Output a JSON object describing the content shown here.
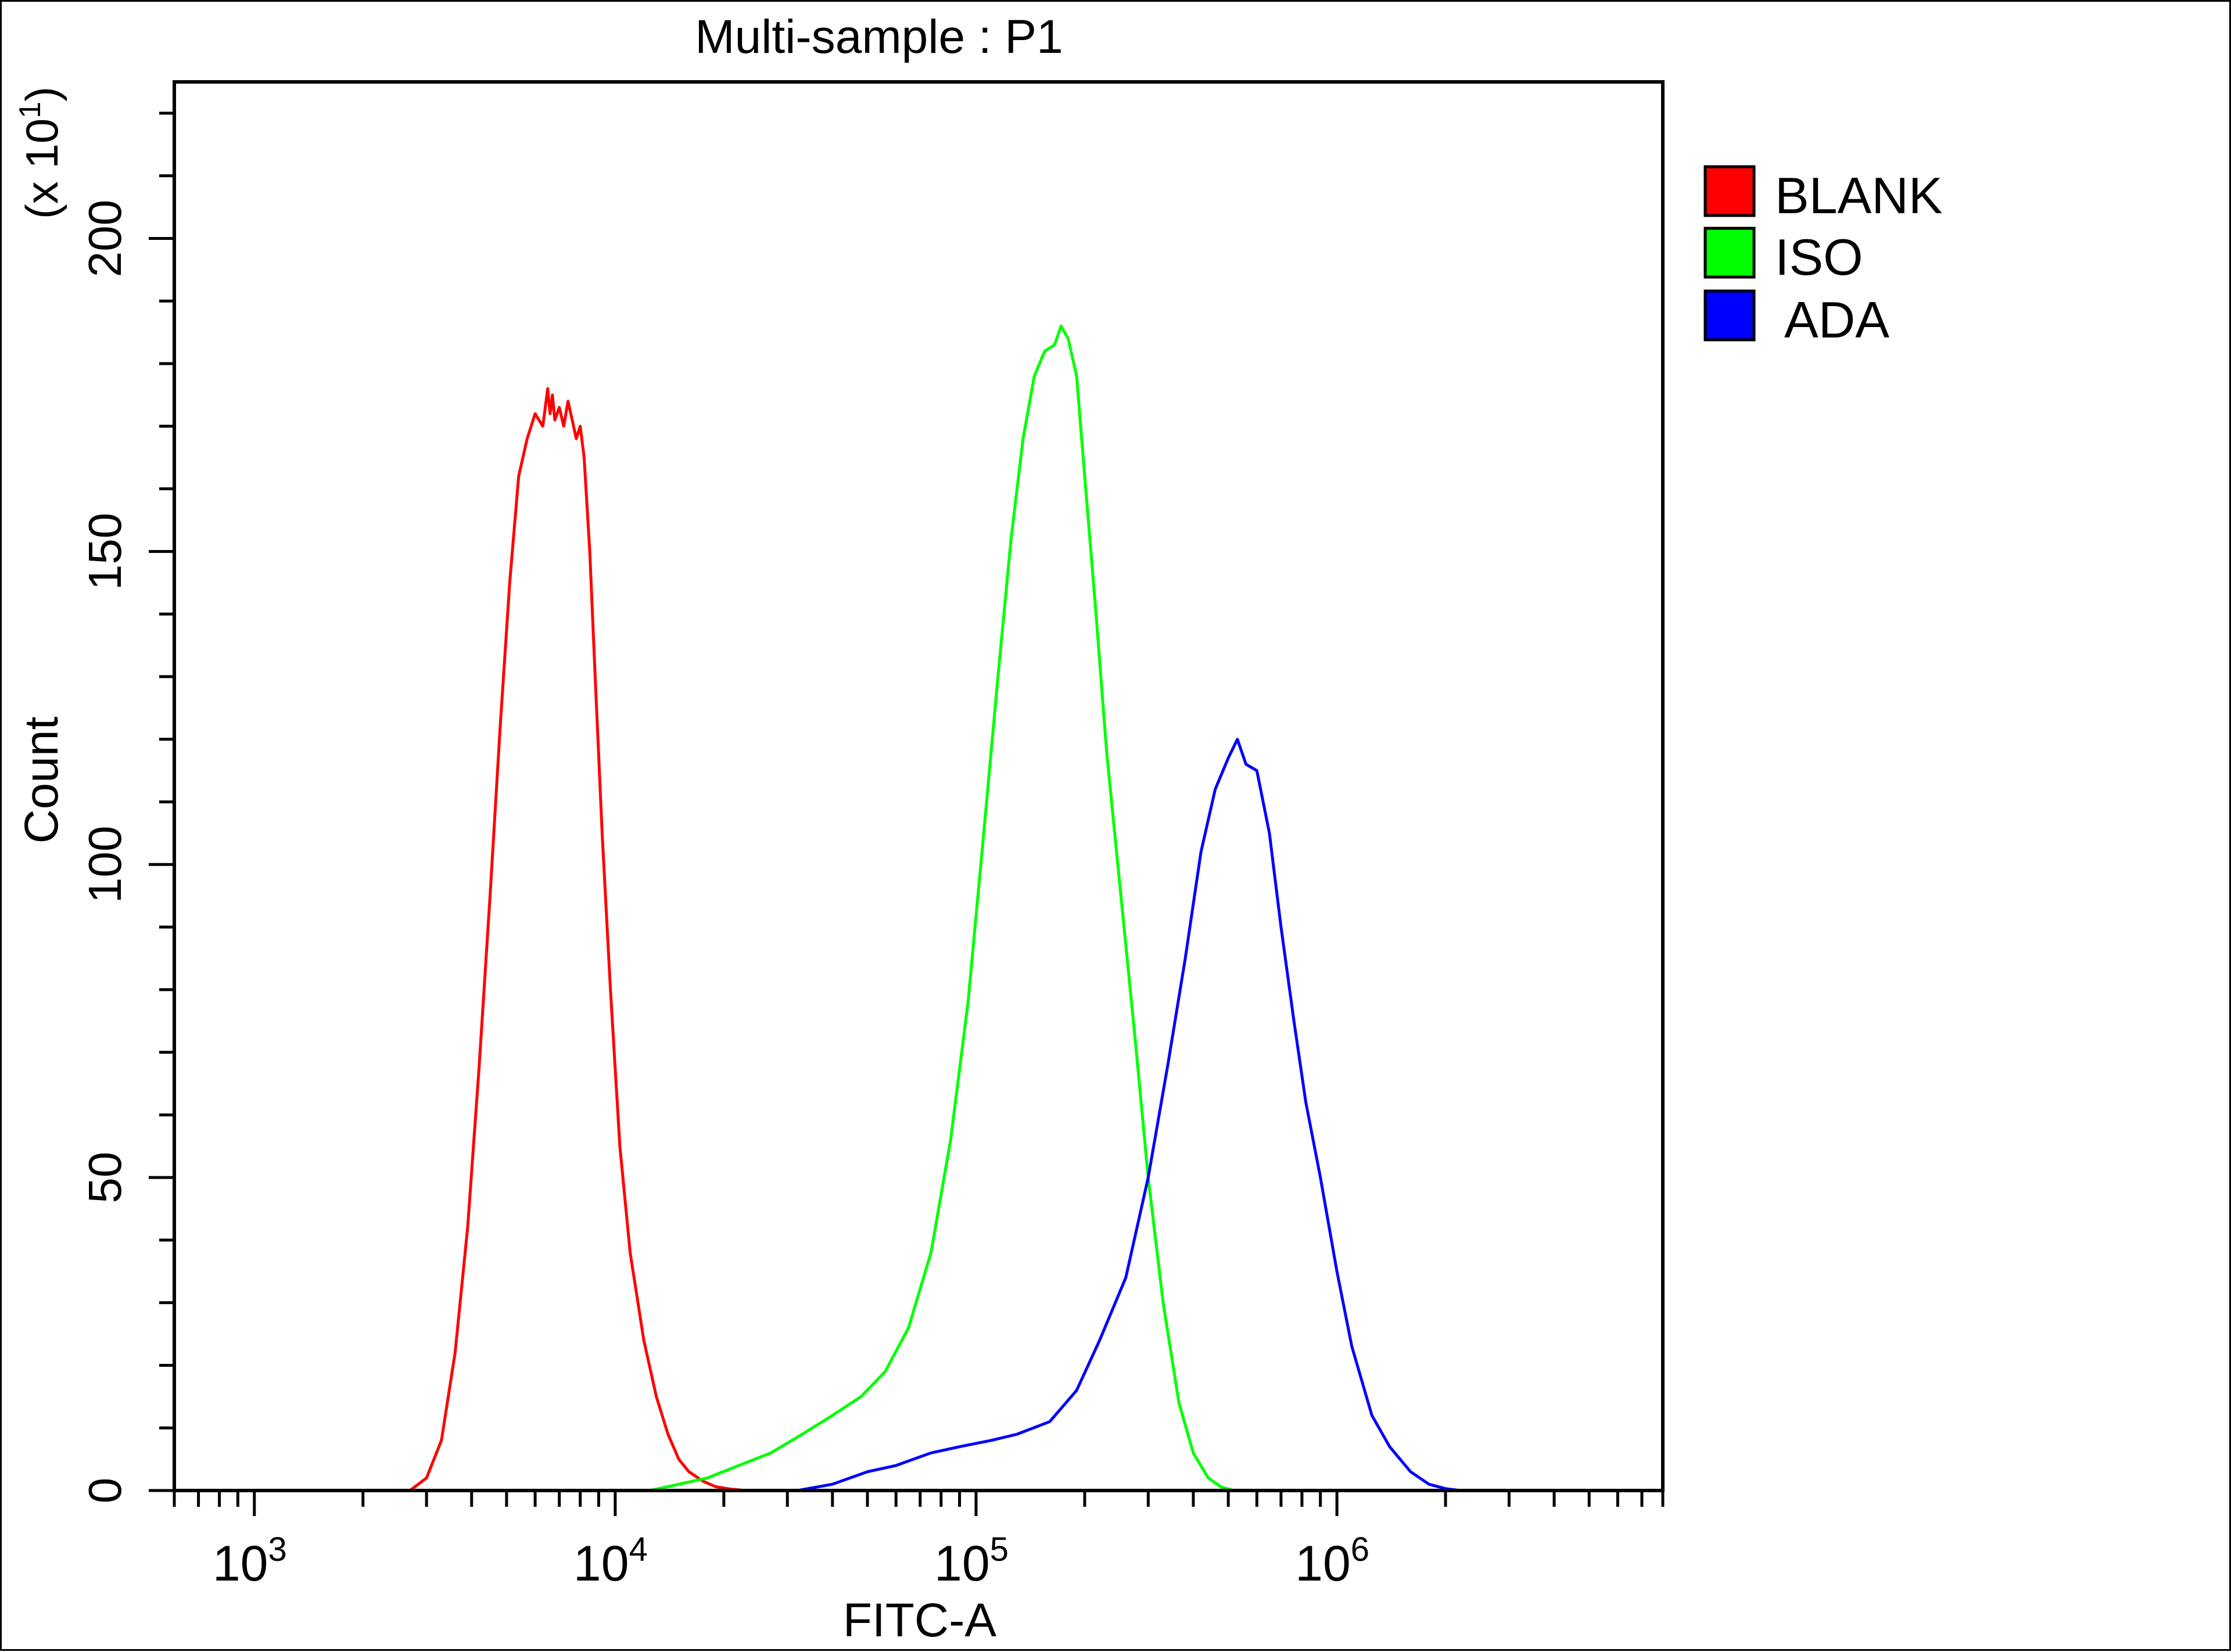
{
  "chart_data": {
    "type": "line",
    "title": "Multi-sample : P1",
    "xlabel": "FITC-A",
    "ylabel": "Count",
    "y_multiplier_label": "(x 10",
    "y_multiplier_exp": "1",
    "y_multiplier_close": ")",
    "x_scale": "log",
    "xlim": [
      600,
      8000000
    ],
    "ylim": [
      0,
      225
    ],
    "x_ticks": [
      {
        "value": 1000,
        "base": "10",
        "exp": "3"
      },
      {
        "value": 10000,
        "base": "10",
        "exp": "4"
      },
      {
        "value": 100000,
        "base": "10",
        "exp": "5"
      },
      {
        "value": 1000000,
        "base": "10",
        "exp": "6"
      }
    ],
    "y_ticks": [
      0,
      50,
      100,
      150,
      200
    ],
    "legend_position": "right",
    "series": [
      {
        "name": "BLANK",
        "color": "#ff0000",
        "x": [
          2700,
          3000,
          3300,
          3600,
          3900,
          4200,
          4500,
          4800,
          5100,
          5400,
          5700,
          6000,
          6300,
          6500,
          6600,
          6700,
          6800,
          7000,
          7200,
          7400,
          7600,
          7800,
          8000,
          8200,
          8500,
          8800,
          9200,
          9700,
          10300,
          11000,
          12000,
          13000,
          14000,
          15000,
          16000,
          17500,
          19000,
          21000,
          23000
        ],
        "y": [
          0,
          2,
          8,
          22,
          42,
          68,
          95,
          122,
          145,
          162,
          168,
          172,
          170,
          176,
          172,
          175,
          171,
          173,
          170,
          174,
          171,
          168,
          170,
          165,
          150,
          130,
          105,
          80,
          55,
          38,
          24,
          15,
          9,
          5,
          3,
          1.5,
          0.6,
          0.2,
          0
        ]
      },
      {
        "name": "ISO",
        "color": "#00ff00",
        "x": [
          12500,
          15000,
          18000,
          22000,
          27000,
          33000,
          40000,
          48000,
          56000,
          65000,
          75000,
          85000,
          95000,
          105000,
          115000,
          125000,
          135000,
          145000,
          155000,
          165000,
          172000,
          180000,
          190000,
          200000,
          215000,
          230000,
          250000,
          275000,
          300000,
          330000,
          365000,
          400000,
          440000,
          480000,
          520000
        ],
        "y": [
          0,
          1,
          2,
          4,
          6,
          9,
          12,
          15,
          19,
          26,
          38,
          56,
          78,
          105,
          130,
          152,
          168,
          178,
          182,
          183,
          186,
          184,
          178,
          162,
          140,
          118,
          97,
          73,
          50,
          30,
          14,
          6,
          2,
          0.5,
          0
        ]
      },
      {
        "name": "ADA",
        "color": "#0000ff",
        "x": [
          32000,
          40000,
          50000,
          60000,
          75000,
          90000,
          110000,
          130000,
          160000,
          190000,
          220000,
          260000,
          300000,
          340000,
          380000,
          420000,
          460000,
          500000,
          530000,
          560000,
          600000,
          650000,
          700000,
          760000,
          820000,
          900000,
          1000000,
          1100000,
          1250000,
          1400000,
          1600000,
          1800000,
          2000000,
          2200000
        ],
        "y": [
          0,
          1,
          3,
          4,
          6,
          7,
          8,
          9,
          11,
          16,
          24,
          34,
          50,
          68,
          85,
          102,
          112,
          117,
          120,
          116,
          115,
          105,
          90,
          75,
          62,
          50,
          35,
          23,
          12,
          7,
          3,
          1,
          0.3,
          0
        ]
      }
    ]
  }
}
